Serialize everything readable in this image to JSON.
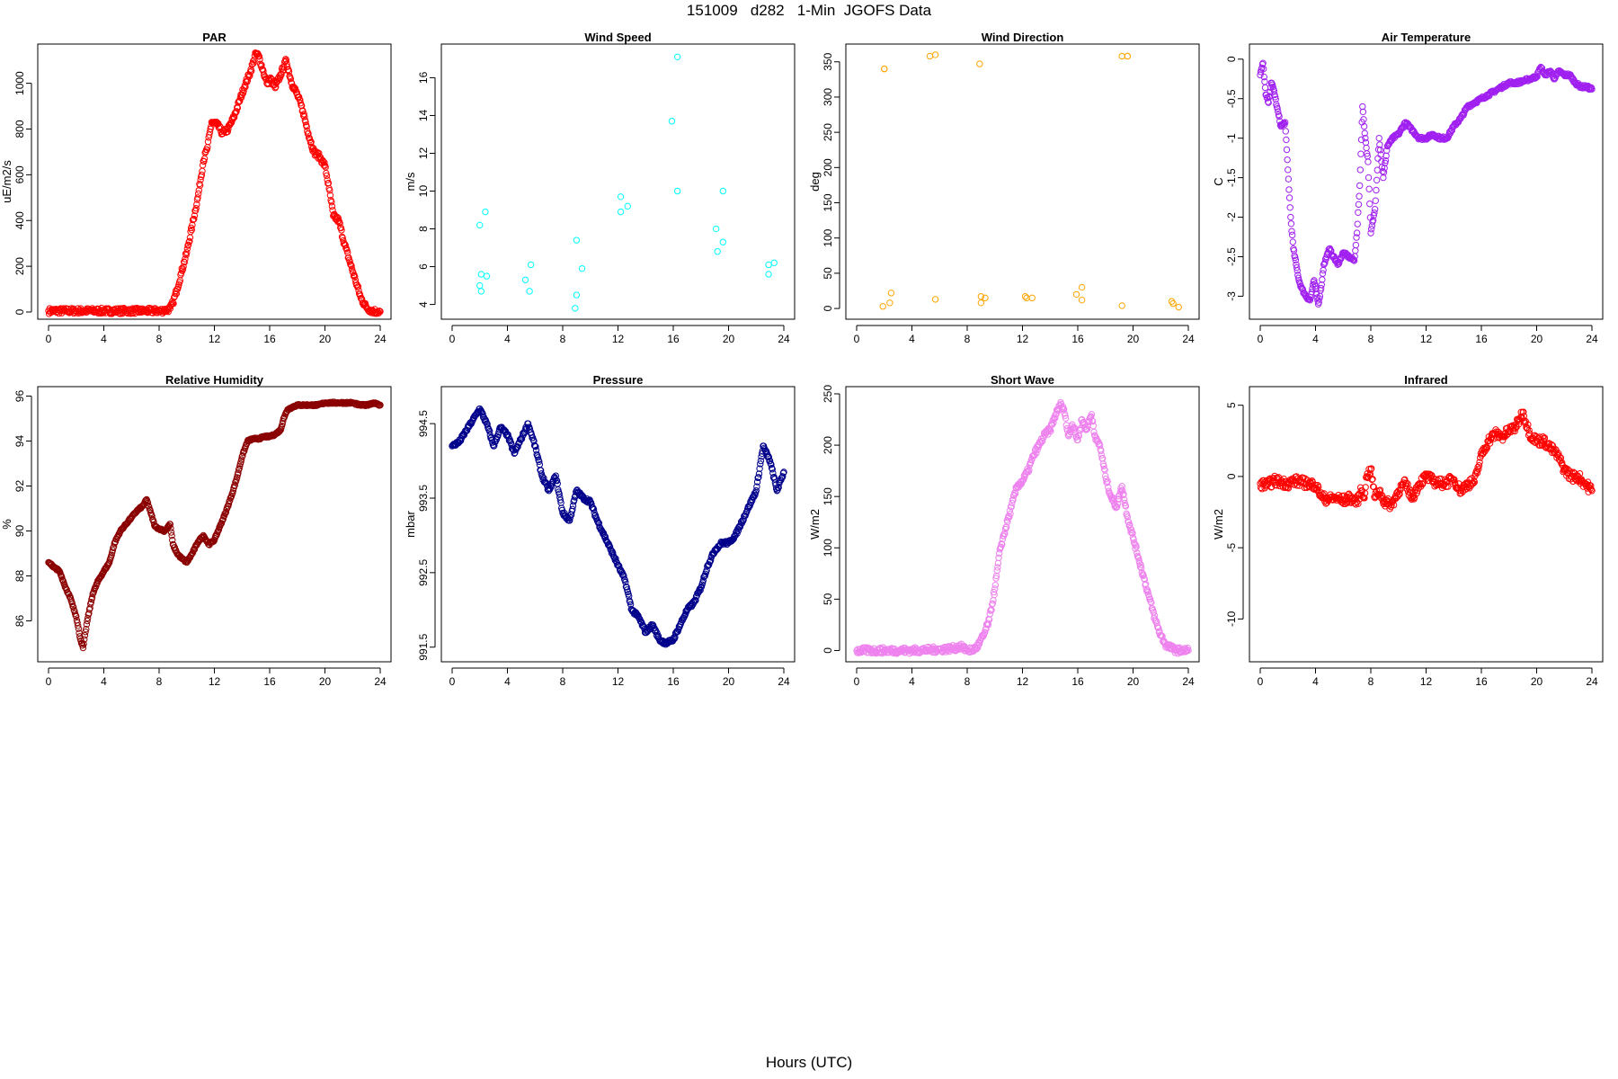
{
  "figure": {
    "title": "151009   d282   1-Min  JGOFS Data",
    "x_caption": "Hours (UTC)"
  },
  "chart_data": [
    {
      "type": "scatter",
      "title": "PAR",
      "ylabel": "uE/m2/s",
      "color": "#ff0000",
      "xlim": [
        0,
        24
      ],
      "ylim": [
        0,
        1140
      ],
      "xticks": [
        0,
        4,
        8,
        12,
        16,
        20,
        24
      ],
      "yticks": [
        0,
        200,
        400,
        600,
        800,
        1000
      ],
      "x": [
        0,
        1,
        2,
        3,
        4,
        5,
        6,
        7,
        8,
        8.5,
        8.8,
        9.0,
        9.3,
        9.6,
        10.0,
        10.4,
        10.8,
        11.2,
        11.5,
        11.8,
        12.2,
        12.6,
        13.0,
        13.4,
        13.8,
        14.2,
        14.6,
        15.0,
        15.2,
        15.5,
        15.8,
        16.1,
        16.4,
        16.8,
        17.2,
        17.6,
        18.0,
        18.4,
        18.8,
        19.2,
        19.6,
        20.0,
        20.3,
        20.6,
        21.0,
        21.4,
        21.8,
        22.2,
        22.6,
        23.0,
        23.4,
        23.8,
        24.0
      ],
      "y": [
        5,
        5,
        5,
        5,
        5,
        5,
        5,
        5,
        5,
        8,
        15,
        40,
        100,
        170,
        260,
        380,
        500,
        660,
        720,
        830,
        820,
        780,
        800,
        850,
        920,
        990,
        1050,
        1130,
        1120,
        1060,
        1000,
        1020,
        980,
        1040,
        1100,
        1000,
        950,
        880,
        780,
        700,
        680,
        640,
        540,
        420,
        400,
        300,
        220,
        140,
        60,
        20,
        5,
        2,
        2
      ],
      "line_jitter": 25
    },
    {
      "type": "scatter",
      "title": "Wind Speed",
      "ylabel": "m/s",
      "color": "#00ffff",
      "xlim": [
        0,
        24
      ],
      "ylim": [
        3.6,
        17.4
      ],
      "xticks": [
        0,
        4,
        8,
        12,
        16,
        20,
        24
      ],
      "yticks": [
        4,
        6,
        8,
        10,
        12,
        14,
        16
      ],
      "x": [
        2.0,
        2.1,
        2.0,
        2.1,
        2.4,
        2.5,
        5.3,
        5.7,
        5.6,
        8.9,
        9.0,
        9.0,
        9.4,
        12.2,
        12.2,
        12.7,
        15.9,
        16.3,
        16.3,
        19.1,
        19.2,
        19.6,
        19.6,
        22.9,
        22.9,
        23.3
      ],
      "y": [
        8.2,
        5.6,
        5.0,
        4.7,
        8.9,
        5.5,
        5.3,
        6.1,
        4.7,
        3.8,
        4.5,
        7.4,
        5.9,
        9.7,
        8.9,
        9.2,
        13.7,
        17.1,
        10.0,
        8.0,
        6.8,
        10.0,
        7.3,
        5.6,
        6.1,
        6.2
      ]
    },
    {
      "type": "scatter",
      "title": "Wind Direction",
      "ylabel": "deg",
      "color": "#ffa500",
      "xlim": [
        0,
        24
      ],
      "ylim": [
        -5,
        365
      ],
      "xticks": [
        0,
        4,
        8,
        12,
        16,
        20,
        24
      ],
      "yticks": [
        0,
        50,
        100,
        150,
        200,
        250,
        300,
        350
      ],
      "x": [
        1.9,
        2.0,
        2.0,
        2.4,
        2.5,
        5.3,
        5.7,
        5.7,
        8.9,
        9.0,
        9.0,
        9.3,
        12.2,
        12.3,
        12.7,
        15.9,
        16.3,
        16.3,
        19.2,
        19.6,
        19.6,
        19.2,
        22.8,
        22.9,
        23.3
      ],
      "y": [
        3,
        340,
        340,
        8,
        22,
        358,
        360,
        13,
        347,
        8,
        17,
        15,
        17,
        15,
        15,
        20,
        12,
        30,
        4,
        358,
        358,
        358,
        10,
        7,
        2
      ]
    },
    {
      "type": "scatter",
      "title": "Air Temperature",
      "ylabel": "C",
      "color": "#a020f0",
      "xlim": [
        0,
        24
      ],
      "ylim": [
        -3.2,
        0.1
      ],
      "xticks": [
        0,
        4,
        8,
        12,
        16,
        20,
        24
      ],
      "yticks": [
        0.0,
        -0.5,
        -1.0,
        -1.5,
        -2.0,
        -2.5,
        -3.0
      ],
      "x": [
        0,
        0.2,
        0.4,
        0.6,
        0.8,
        1.0,
        1.2,
        1.5,
        1.8,
        2.0,
        2.2,
        2.4,
        2.6,
        2.8,
        3.0,
        3.3,
        3.6,
        3.9,
        4.2,
        4.4,
        4.6,
        4.8,
        5.0,
        5.3,
        5.6,
        6.0,
        6.4,
        6.8,
        7.0,
        7.2,
        7.4,
        7.6,
        7.8,
        8.0,
        8.3,
        8.6,
        8.9,
        9.2,
        9.6,
        10.0,
        10.5,
        11.0,
        11.5,
        12.0,
        12.5,
        13.0,
        13.5,
        14.0,
        14.5,
        15.0,
        15.5,
        16.0,
        16.5,
        17.0,
        17.5,
        18.0,
        18.5,
        19.0,
        19.5,
        20.0,
        20.3,
        20.6,
        21.0,
        21.3,
        21.6,
        22.0,
        22.4,
        22.8,
        23.2,
        23.6,
        24.0
      ],
      "y": [
        -0.2,
        -0.05,
        -0.45,
        -0.55,
        -0.3,
        -0.4,
        -0.6,
        -0.85,
        -0.8,
        -1.4,
        -2.0,
        -2.4,
        -2.6,
        -2.8,
        -2.9,
        -3.0,
        -3.05,
        -2.8,
        -3.1,
        -2.9,
        -2.6,
        -2.5,
        -2.4,
        -2.5,
        -2.6,
        -2.45,
        -2.5,
        -2.55,
        -2.2,
        -1.6,
        -0.6,
        -1.0,
        -1.3,
        -2.2,
        -1.9,
        -1.0,
        -1.5,
        -1.1,
        -1.0,
        -0.95,
        -0.8,
        -0.9,
        -1.0,
        -1.0,
        -0.95,
        -1.0,
        -1.0,
        -0.85,
        -0.75,
        -0.6,
        -0.55,
        -0.5,
        -0.45,
        -0.4,
        -0.35,
        -0.3,
        -0.3,
        -0.28,
        -0.25,
        -0.22,
        -0.1,
        -0.2,
        -0.15,
        -0.25,
        -0.15,
        -0.2,
        -0.2,
        -0.3,
        -0.35,
        -0.35,
        -0.38
      ],
      "line_jitter": 0.04
    },
    {
      "type": "scatter",
      "title": "Relative Humidity",
      "ylabel": "%",
      "color": "#8b0000",
      "xlim": [
        0,
        24
      ],
      "ylim": [
        84.5,
        96.1
      ],
      "xticks": [
        0,
        4,
        8,
        12,
        16,
        20,
        24
      ],
      "yticks": [
        86,
        88,
        90,
        92,
        94,
        96
      ],
      "x": [
        0,
        0.4,
        0.8,
        1.2,
        1.6,
        2.0,
        2.3,
        2.5,
        2.8,
        3.2,
        3.6,
        4.0,
        4.4,
        4.8,
        5.2,
        5.6,
        6.0,
        6.4,
        6.8,
        7.1,
        7.4,
        7.7,
        8.0,
        8.4,
        8.8,
        9.0,
        9.3,
        9.6,
        10.0,
        10.4,
        10.8,
        11.2,
        11.6,
        12.0,
        12.4,
        12.8,
        13.2,
        13.6,
        14.0,
        14.4,
        14.8,
        15.2,
        15.6,
        16.0,
        16.4,
        16.8,
        17.0,
        17.3,
        17.6,
        18.0,
        18.5,
        19.0,
        19.5,
        20.0,
        20.5,
        21.0,
        21.5,
        22.0,
        22.5,
        23.0,
        23.5,
        24.0
      ],
      "y": [
        88.6,
        88.4,
        88.2,
        87.5,
        87.0,
        86.2,
        85.2,
        84.8,
        86.0,
        87.2,
        87.8,
        88.2,
        88.6,
        89.5,
        90.0,
        90.3,
        90.6,
        90.9,
        91.1,
        91.4,
        90.8,
        90.2,
        90.1,
        90.0,
        90.3,
        89.4,
        89.0,
        88.8,
        88.6,
        89.0,
        89.5,
        89.8,
        89.4,
        89.6,
        90.2,
        90.8,
        91.5,
        92.3,
        93.3,
        94.0,
        94.1,
        94.1,
        94.2,
        94.2,
        94.3,
        94.5,
        95.0,
        95.4,
        95.5,
        95.6,
        95.6,
        95.6,
        95.6,
        95.7,
        95.7,
        95.7,
        95.7,
        95.7,
        95.6,
        95.6,
        95.7,
        95.6
      ],
      "line_jitter": 0.08
    },
    {
      "type": "scatter",
      "title": "Pressure",
      "ylabel": "mbar",
      "color": "#00008b",
      "xlim": [
        0,
        24
      ],
      "ylim": [
        991.4,
        994.9
      ],
      "xticks": [
        0,
        4,
        8,
        12,
        16,
        20,
        24
      ],
      "yticks": [
        991.5,
        992.5,
        993.5,
        994.5
      ],
      "x": [
        0,
        0.5,
        1.0,
        1.5,
        2.0,
        2.5,
        3.0,
        3.5,
        4.0,
        4.5,
        5.0,
        5.5,
        6.0,
        6.5,
        7.0,
        7.5,
        8.0,
        8.5,
        9.0,
        9.5,
        10.0,
        10.5,
        11.0,
        11.5,
        12.0,
        12.5,
        13.0,
        13.5,
        14.0,
        14.5,
        15.0,
        15.5,
        16.0,
        16.5,
        17.0,
        17.5,
        18.0,
        18.5,
        19.0,
        19.5,
        20.0,
        20.5,
        21.0,
        21.5,
        22.0,
        22.5,
        23.0,
        23.5,
        24.0
      ],
      "y": [
        994.2,
        994.25,
        994.4,
        994.55,
        994.7,
        994.5,
        994.2,
        994.45,
        994.35,
        994.1,
        994.3,
        994.5,
        994.2,
        993.8,
        993.6,
        993.8,
        993.3,
        993.2,
        993.6,
        993.5,
        993.45,
        993.2,
        993.0,
        992.8,
        992.6,
        992.4,
        992.0,
        991.9,
        991.7,
        991.8,
        991.6,
        991.55,
        991.6,
        991.8,
        992.0,
        992.1,
        992.3,
        992.6,
        992.8,
        992.9,
        992.9,
        993.0,
        993.2,
        993.4,
        993.6,
        994.2,
        994.0,
        993.6,
        993.85
      ],
      "line_jitter": 0.05
    },
    {
      "type": "scatter",
      "title": "Short Wave",
      "ylabel": "W/m2",
      "color": "#ee82ee",
      "xlim": [
        0,
        24
      ],
      "ylim": [
        -4,
        250
      ],
      "xticks": [
        0,
        4,
        8,
        12,
        16,
        20,
        24
      ],
      "yticks": [
        0,
        50,
        100,
        150,
        200,
        250
      ],
      "x": [
        0,
        1,
        2,
        3,
        4,
        5,
        6,
        7,
        7.5,
        8.0,
        8.5,
        8.8,
        9.2,
        9.6,
        10.0,
        10.4,
        10.8,
        11.2,
        11.6,
        12.0,
        12.4,
        12.8,
        13.2,
        13.6,
        14.0,
        14.4,
        14.8,
        15.0,
        15.3,
        15.6,
        16.0,
        16.3,
        16.6,
        17.0,
        17.3,
        17.6,
        18.0,
        18.4,
        18.8,
        19.2,
        19.6,
        20.0,
        20.4,
        20.8,
        21.2,
        21.6,
        22.0,
        22.4,
        22.8,
        23.2,
        23.6,
        24.0
      ],
      "y": [
        0,
        0,
        0,
        0,
        0,
        0.5,
        1,
        2,
        4,
        0,
        1,
        5,
        15,
        30,
        60,
        100,
        120,
        140,
        160,
        165,
        175,
        190,
        200,
        210,
        215,
        230,
        240,
        235,
        210,
        220,
        205,
        225,
        215,
        230,
        205,
        200,
        170,
        150,
        140,
        160,
        130,
        110,
        90,
        70,
        50,
        30,
        15,
        5,
        2,
        0,
        0,
        0
      ],
      "line_jitter": 6
    },
    {
      "type": "scatter",
      "title": "Infrared",
      "ylabel": "W/m2",
      "color": "#ff0000",
      "xlim": [
        0,
        24
      ],
      "ylim": [
        -12.5,
        5.8
      ],
      "xticks": [
        0,
        4,
        8,
        12,
        16,
        20,
        24
      ],
      "yticks": [
        5,
        0,
        -5,
        -10
      ],
      "x": [
        0,
        0.5,
        1.0,
        1.5,
        2.0,
        2.5,
        3.0,
        3.5,
        4.0,
        4.5,
        5.0,
        5.5,
        6.0,
        6.5,
        7.0,
        7.3,
        7.5,
        7.7,
        8.0,
        8.3,
        8.6,
        9.0,
        9.5,
        10.0,
        10.5,
        11.0,
        11.5,
        12.0,
        12.5,
        13.0,
        13.5,
        14.0,
        14.5,
        15.0,
        15.5,
        16.0,
        16.5,
        17.0,
        17.5,
        18.0,
        18.5,
        19.0,
        19.5,
        20.0,
        20.5,
        21.0,
        21.5,
        22.0,
        22.5,
        23.0,
        23.5,
        24.0
      ],
      "y": [
        -0.5,
        -0.6,
        -0.3,
        -0.4,
        -0.5,
        -0.3,
        -0.4,
        -0.5,
        -0.6,
        -1.5,
        -1.6,
        -1.5,
        -1.7,
        -1.5,
        -1.8,
        -1.0,
        -1.5,
        0,
        0.5,
        -1.5,
        -1.0,
        -1.8,
        -2.0,
        -1.0,
        -0.5,
        -1.5,
        -0.5,
        0,
        -0.3,
        -0.5,
        -0.4,
        -0.2,
        -1.0,
        -0.5,
        -0.4,
        1.5,
        2.5,
        3.0,
        2.8,
        3.2,
        3.5,
        4.5,
        3.0,
        2.5,
        2.5,
        2.0,
        1.5,
        0.5,
        0,
        0,
        -0.5,
        -1.0
      ],
      "line_jitter": 0.7
    }
  ]
}
